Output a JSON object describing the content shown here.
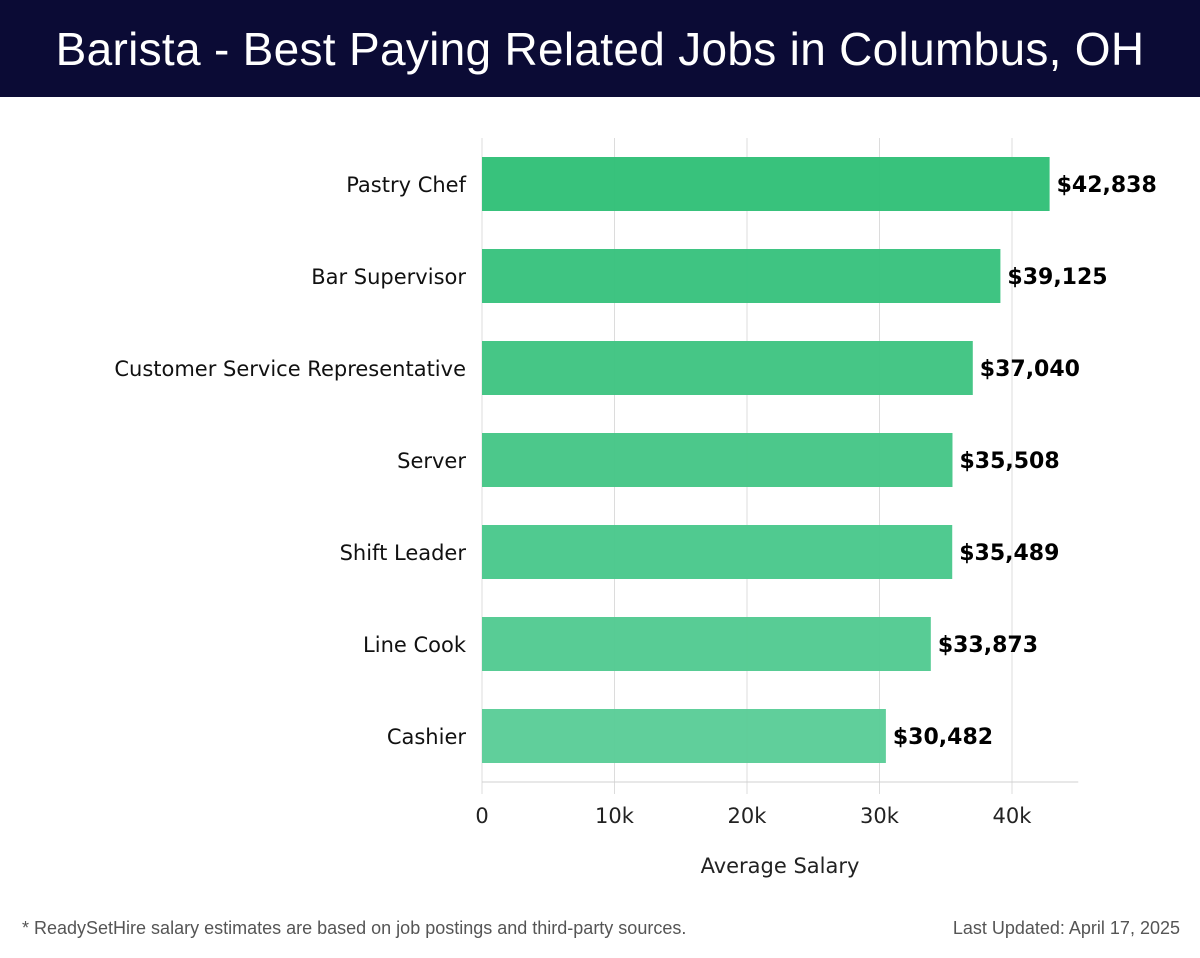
{
  "title": "Barista - Best Paying Related Jobs in Columbus, OH",
  "chart_data": {
    "type": "bar",
    "orientation": "horizontal",
    "title": "Barista - Best Paying Related Jobs in Columbus, OH",
    "categories": [
      "Pastry Chef",
      "Bar Supervisor",
      "Customer Service Representative",
      "Server",
      "Shift Leader",
      "Line Cook",
      "Cashier"
    ],
    "values": [
      42838,
      39125,
      37040,
      35508,
      35489,
      33873,
      30482
    ],
    "value_labels": [
      "$42,838",
      "$39,125",
      "$37,040",
      "$35,508",
      "$35,489",
      "$33,873",
      "$30,482"
    ],
    "colors": [
      "#2dbf75",
      "#35c17b",
      "#3cc380",
      "#42c585",
      "#47c78a",
      "#4fc98f",
      "#57cc96"
    ],
    "xlabel": "Average Salary",
    "ylabel": "",
    "xlim": [
      0,
      45000
    ],
    "xticks": [
      0,
      10000,
      20000,
      30000,
      40000
    ],
    "xtick_labels": [
      "0",
      "10k",
      "20k",
      "30k",
      "40k"
    ],
    "grid": true
  },
  "footer": {
    "note": "* ReadySetHire salary estimates are based on job postings and third-party sources.",
    "updated": "Last Updated: April 17, 2025"
  }
}
